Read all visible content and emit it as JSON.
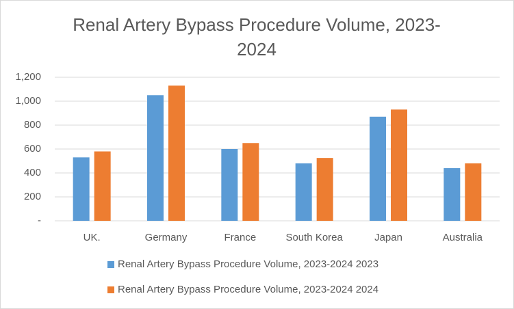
{
  "chart_data": {
    "type": "bar",
    "title": "Renal Artery Bypass Procedure Volume, 2023-2024",
    "categories": [
      "UK.",
      "Germany",
      "France",
      "South Korea",
      "Japan",
      "Australia"
    ],
    "series": [
      {
        "name": "Renal Artery Bypass Procedure Volume, 2023-2024 2023",
        "color": "#5b9bd5",
        "values": [
          530,
          1050,
          600,
          480,
          870,
          440
        ]
      },
      {
        "name": "Renal Artery Bypass Procedure Volume, 2023-2024 2024",
        "color": "#ed7d31",
        "values": [
          580,
          1130,
          650,
          525,
          930,
          480
        ]
      }
    ],
    "ylim": [
      0,
      1200
    ],
    "yticks": [
      {
        "value": 0,
        "label": "-"
      },
      200,
      400,
      600,
      800,
      {
        "value": 1000,
        "label": "1,000"
      },
      {
        "value": 1200,
        "label": "1,200"
      }
    ],
    "grid": true,
    "legend": "bottom"
  }
}
